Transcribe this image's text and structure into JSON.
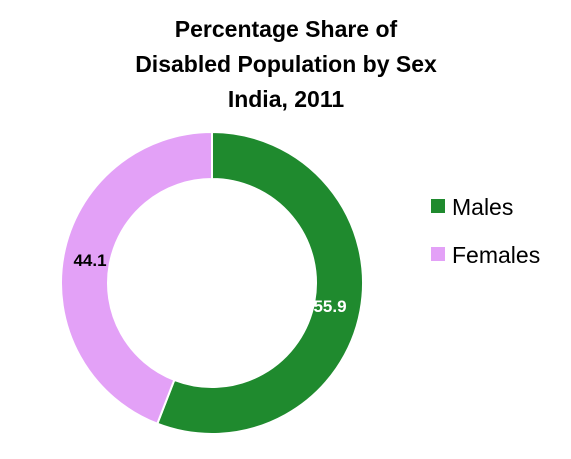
{
  "chart_data": {
    "type": "pie",
    "variant": "donut",
    "title_lines": [
      "Percentage Share of",
      "Disabled Population by Sex",
      "India, 2011"
    ],
    "categories": [
      "Males",
      "Females"
    ],
    "values": [
      55.9,
      44.1
    ],
    "data_labels": [
      "55.9",
      "44.1"
    ],
    "colors": [
      "#1f8a2e",
      "#e3a1f7"
    ],
    "label_colors": [
      "#ffffff",
      "#000000"
    ],
    "legend": {
      "placement": "right",
      "entries": [
        "Males",
        "Females"
      ]
    }
  }
}
